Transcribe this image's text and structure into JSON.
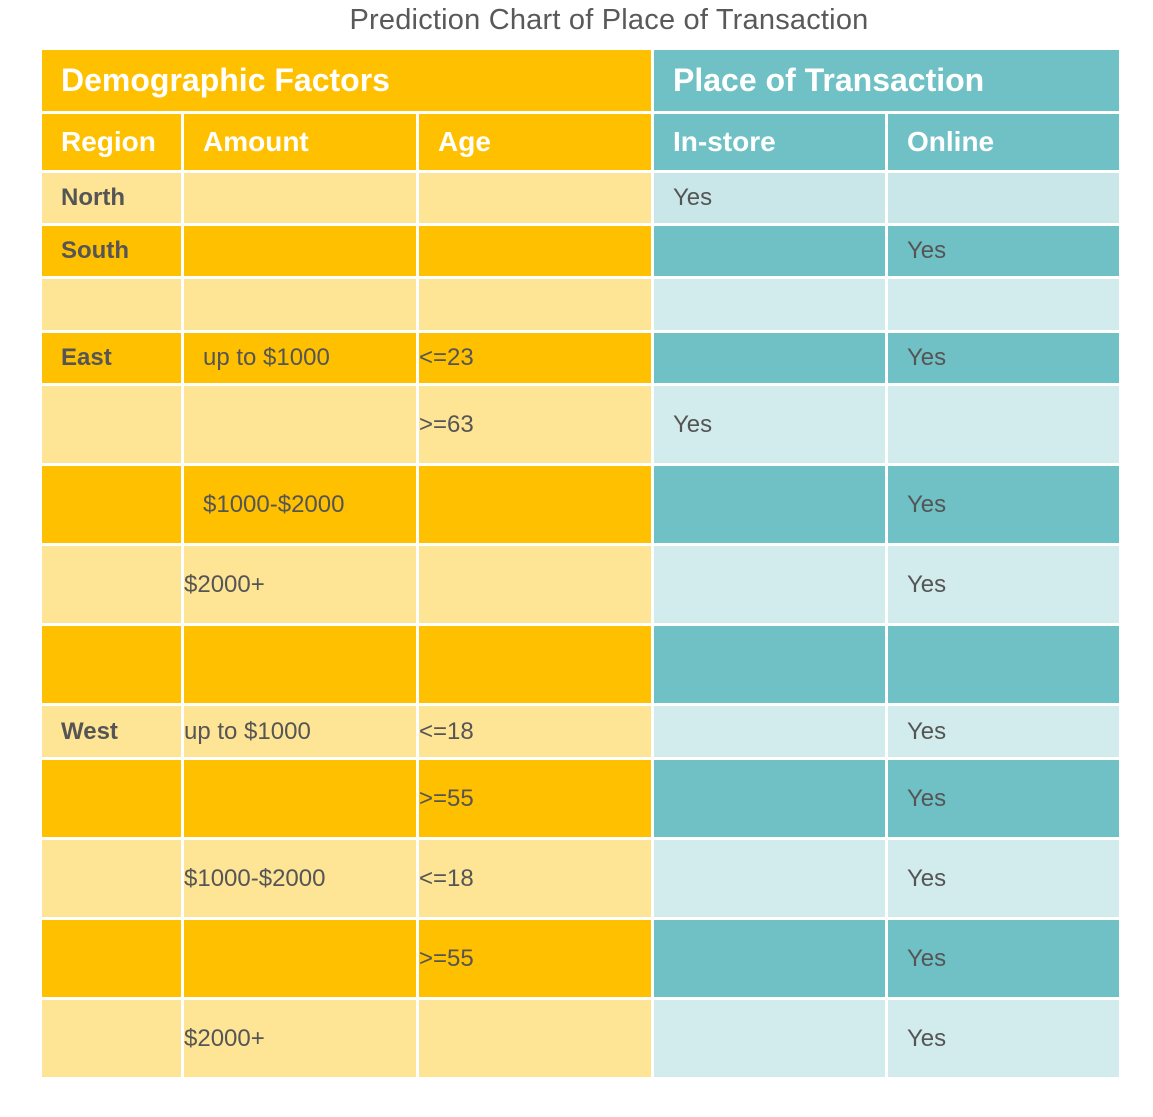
{
  "title": "Prediction Chart of Place of Transaction",
  "header": {
    "group_left": "Demographic Factors",
    "group_right": "Place of Transaction",
    "columns": [
      "Region",
      "Amount",
      "Age",
      "In-store",
      "Online"
    ]
  },
  "rows": [
    {
      "region": "North",
      "amount": "",
      "age": "",
      "instore": "Yes",
      "online": ""
    },
    {
      "region": "South",
      "amount": "",
      "age": "",
      "instore": "",
      "online": "Yes"
    },
    {
      "region": "",
      "amount": "",
      "age": "",
      "instore": "",
      "online": ""
    },
    {
      "region": "East",
      "amount": "up to $1000",
      "age": "<=23",
      "instore": "",
      "online": "Yes"
    },
    {
      "region": "",
      "amount": "",
      "age": ">=63",
      "instore": "Yes",
      "online": ""
    },
    {
      "region": "",
      "amount": "$1000-$2000",
      "age": "",
      "instore": "",
      "online": "Yes"
    },
    {
      "region": "",
      "amount": "$2000+",
      "age": "",
      "instore": "",
      "online": "Yes"
    },
    {
      "region": "",
      "amount": "",
      "age": "",
      "instore": "",
      "online": ""
    },
    {
      "region": "West",
      "amount": "up to $1000",
      "age": "<=18",
      "instore": "",
      "online": "Yes"
    },
    {
      "region": "",
      "amount": "",
      "age": ">=55",
      "instore": "",
      "online": "Yes"
    },
    {
      "region": "",
      "amount": "$1000-$2000",
      "age": "<=18",
      "instore": "",
      "online": "Yes"
    },
    {
      "region": "",
      "amount": "",
      "age": ">=55",
      "instore": "",
      "online": "Yes"
    },
    {
      "region": "",
      "amount": "$2000+",
      "age": "",
      "instore": "",
      "online": "Yes"
    }
  ],
  "colors": {
    "orange_header": "#FFC000",
    "teal_header": "#70C1C5",
    "orange_light": "#FEE495",
    "orange_dark": "#FFC000",
    "teal_light": "#D2EBEC",
    "teal_dark": "#70C1C5"
  }
}
